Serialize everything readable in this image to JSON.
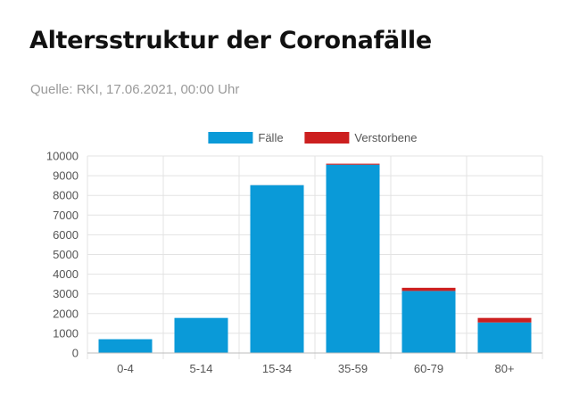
{
  "header": {
    "title": "Altersstruktur der Coronafälle",
    "source": "Quelle: RKI, 17.06.2021, 00:00 Uhr"
  },
  "colors": {
    "faelle": "#0a9ad8",
    "verstorbene": "#cc1f1f",
    "grid": "#e3e3e3",
    "axis": "#bdbdbd"
  },
  "chart_data": {
    "type": "bar",
    "stacked": true,
    "title": "Altersstruktur der Coronafälle",
    "categories": [
      "0-4",
      "5-14",
      "15-34",
      "35-59",
      "60-79",
      "80+"
    ],
    "series": [
      {
        "name": "Fälle",
        "color": "#0a9ad8",
        "values": [
          700,
          1780,
          8520,
          9560,
          3150,
          1550
        ]
      },
      {
        "name": "Verstorbene",
        "color": "#cc1f1f",
        "values": [
          0,
          0,
          2,
          50,
          160,
          230
        ]
      }
    ],
    "ylim": [
      0,
      10000
    ],
    "yticks": [
      0,
      1000,
      2000,
      3000,
      4000,
      5000,
      6000,
      7000,
      8000,
      9000,
      10000
    ],
    "grid": true,
    "legend": "top-center"
  }
}
